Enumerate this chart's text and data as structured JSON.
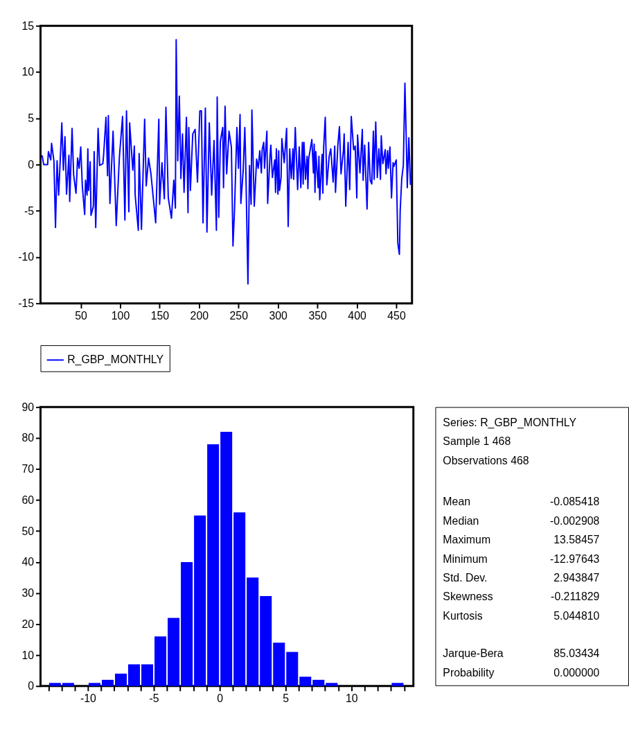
{
  "chart_data": [
    {
      "type": "line",
      "xlim": [
        -1,
        470
      ],
      "xticks": [
        50,
        100,
        150,
        200,
        250,
        300,
        350,
        400,
        450
      ],
      "ylim": [
        -15,
        15
      ],
      "yticks": [
        -15,
        -10,
        -5,
        0,
        5,
        10,
        15
      ],
      "grid": false,
      "legend": "bottom",
      "series": [
        {
          "name": "R_GBP_MONTHLY",
          "color": "#0000ff",
          "x": [
            1,
            3,
            8,
            9,
            12,
            13,
            16,
            18,
            20,
            22,
            24,
            26,
            28,
            30,
            32,
            35,
            36,
            39,
            41,
            44,
            46,
            48,
            50,
            52,
            55,
            56,
            58,
            59,
            60,
            62,
            63,
            66,
            67,
            69,
            72,
            74,
            78,
            79,
            82,
            84,
            85,
            87,
            91,
            95,
            99,
            103,
            106,
            108,
            111,
            112,
            116,
            118,
            119,
            123,
            124,
            127,
            131,
            133,
            136,
            139,
            145,
            149,
            150,
            153,
            156,
            158,
            161,
            165,
            168,
            170,
            171,
            173,
            175,
            177,
            179,
            181,
            184,
            186,
            187,
            189,
            192,
            195,
            198,
            201,
            203,
            205,
            208,
            210,
            213,
            216,
            219,
            222,
            223,
            225,
            227,
            230,
            231,
            233,
            235,
            238,
            241,
            243,
            245,
            248,
            250,
            252,
            253,
            256,
            258,
            259,
            262,
            264,
            266,
            267,
            270,
            273,
            275,
            277,
            279,
            280,
            282,
            283,
            286,
            287,
            290,
            291,
            293,
            296,
            297,
            298,
            300,
            301,
            302,
            304,
            305,
            308,
            311,
            313,
            315,
            317,
            319,
            320,
            322,
            325,
            327,
            329,
            331,
            332,
            333,
            335,
            337,
            338,
            339,
            343,
            345,
            346,
            347,
            348,
            351,
            352,
            353,
            356,
            357,
            358,
            360,
            362,
            365,
            367,
            370,
            372,
            373,
            376,
            378,
            380,
            383,
            384,
            386,
            389,
            391,
            393,
            396,
            398,
            400,
            401,
            404,
            407,
            408,
            410,
            413,
            415,
            417,
            419,
            421,
            422,
            424,
            426,
            428,
            430,
            431,
            433,
            436,
            437,
            439,
            440,
            442,
            444,
            446,
            447,
            450,
            452,
            454,
            455,
            457,
            459,
            461,
            463,
            464,
            466,
            468
          ],
          "values": [
            1.0,
            0,
            0,
            1.4,
            0.5,
            2.3,
            0.4,
            -6.8,
            0.4,
            -3.3,
            0.5,
            4.5,
            -0.6,
            3.0,
            -3.2,
            1.0,
            -4.0,
            3.9,
            -1.1,
            -3.1,
            0.7,
            -0.4,
            1.9,
            -2.3,
            -5.4,
            -1.7,
            -3.3,
            1.7,
            -2.8,
            0.3,
            -5.5,
            -4.5,
            1.4,
            -6.8,
            3.9,
            -0.1,
            0.1,
            1.0,
            5.1,
            -1.2,
            5.3,
            -4.2,
            3.6,
            -6.6,
            0.8,
            5.2,
            -6.0,
            5.8,
            -5.1,
            4.5,
            -0.6,
            2.0,
            -3.3,
            -7.1,
            1.2,
            -7.0,
            4.9,
            -2.3,
            0.7,
            -1.0,
            -6.3,
            4.9,
            -4.3,
            0.2,
            -3.7,
            6.2,
            -3.6,
            -5.8,
            -1.7,
            -4.7,
            13.5,
            0.4,
            7.4,
            -1.5,
            3.3,
            -3.0,
            5.1,
            -5.2,
            4.0,
            -2.8,
            3.3,
            3.8,
            -1.9,
            5.8,
            5.8,
            -6.3,
            6.1,
            -7.3,
            4.5,
            -3.3,
            2.6,
            -7.1,
            7.3,
            -5.7,
            2.5,
            4.0,
            -2.5,
            6.3,
            -1.0,
            3.6,
            1.9,
            -8.8,
            -4.8,
            4.0,
            -0.4,
            5.4,
            -4.2,
            -0.6,
            4.0,
            0.9,
            -12.9,
            -0.1,
            -4.3,
            5.9,
            -4.5,
            0.6,
            -0.4,
            1.5,
            -0.9,
            1.6,
            2.4,
            -0.4,
            3.6,
            -4.2,
            1.0,
            2.1,
            -1.4,
            0.5,
            -3.0,
            1.7,
            -3.2,
            1.5,
            -2.8,
            -1.4,
            2.8,
            0.2,
            3.9,
            -6.7,
            1.7,
            -1.5,
            1.7,
            -1.6,
            4.0,
            -2.7,
            1.9,
            -2.5,
            2.4,
            -2.1,
            2.4,
            -1.6,
            0.9,
            -2.6,
            0.6,
            2.7,
            -0.9,
            2.2,
            -3.0,
            1.4,
            -2.5,
            0.9,
            -3.8,
            1.1,
            -3.1,
            1.9,
            5.1,
            -2.2,
            0.9,
            1.7,
            -1.9,
            2.0,
            -3.0,
            2.1,
            4.1,
            -1.0,
            1.5,
            3.3,
            -4.5,
            2.4,
            -2.7,
            5.2,
            1.6,
            2.0,
            -3.6,
            3.2,
            -0.9,
            3.8,
            -1.7,
            2.1,
            -4.8,
            2.4,
            -1.7,
            -2.1,
            3.6,
            -1.6,
            4.6,
            -1.4,
            1.7,
            -1.6,
            3.1,
            0.1,
            1.6,
            -1.0,
            1.5,
            -0.4,
            1.9,
            -3.6,
            0.2,
            -0.2,
            0.5,
            -8.5,
            -9.7,
            -5.0,
            -1.5,
            -0.1,
            8.8,
            1.7,
            -2.5,
            2.9,
            -2.2
          ]
        }
      ]
    },
    {
      "type": "histogram",
      "color": "#0000ff",
      "bins": [
        -13,
        -12,
        -11,
        -10,
        -9,
        -8,
        -7,
        -6,
        -5,
        -4,
        -3,
        -2,
        -1,
        0,
        1,
        2,
        3,
        4,
        5,
        6,
        7,
        8,
        9,
        10,
        11,
        12,
        13,
        14
      ],
      "values": [
        1,
        1,
        0,
        1,
        2,
        4,
        7,
        7,
        16,
        22,
        40,
        55,
        78,
        82,
        56,
        35,
        29,
        14,
        11,
        3,
        2,
        1,
        0,
        0,
        0,
        0,
        1
      ],
      "xlim": [
        -13.6,
        14.7
      ],
      "xticks": [
        {
          "value": -13,
          "label": null
        },
        {
          "value": -12,
          "label": null
        },
        {
          "value": -11,
          "label": null
        },
        -10,
        {
          "value": -9,
          "label": null
        },
        {
          "value": -8,
          "label": null
        },
        {
          "value": -7,
          "label": null
        },
        {
          "value": -6,
          "label": null
        },
        -5,
        {
          "value": -4,
          "label": null
        },
        {
          "value": -3,
          "label": null
        },
        {
          "value": -2,
          "label": null
        },
        {
          "value": -1,
          "label": null
        },
        0,
        {
          "value": 1,
          "label": null
        },
        {
          "value": 2,
          "label": null
        },
        {
          "value": 3,
          "label": null
        },
        {
          "value": 4,
          "label": null
        },
        5,
        {
          "value": 6,
          "label": null
        },
        {
          "value": 7,
          "label": null
        },
        {
          "value": 8,
          "label": null
        },
        {
          "value": 9,
          "label": null
        },
        10,
        {
          "value": 11,
          "label": null
        },
        {
          "value": 12,
          "label": null
        },
        {
          "value": 13,
          "label": null
        },
        {
          "value": 14,
          "label": null
        }
      ],
      "ylim": [
        0,
        90
      ],
      "yticks": [
        0,
        10,
        20,
        30,
        40,
        50,
        60,
        70,
        80,
        90
      ],
      "grid": false
    },
    {
      "type": "other",
      "annotations": [
        "Series: R_GBP_MONTHLY",
        "Sample 1 468",
        "Observations 468"
      ],
      "categories": [
        "Mean",
        "Median",
        "Maximum",
        "Minimum",
        "Std. Dev.",
        "Skewness",
        "Kurtosis",
        "Jarque-Bera",
        "Probability"
      ],
      "values": [
        -0.085418,
        -0.002908,
        13.58457,
        -12.97643,
        2.943847,
        -0.211829,
        5.04481,
        85.03434,
        0.0
      ],
      "value_labels": [
        "-0.085418",
        "-0.002908",
        "13.58457",
        "-12.97643",
        "2.943847",
        "-0.211829",
        "5.044810",
        "85.03434",
        "0.000000"
      ]
    }
  ]
}
